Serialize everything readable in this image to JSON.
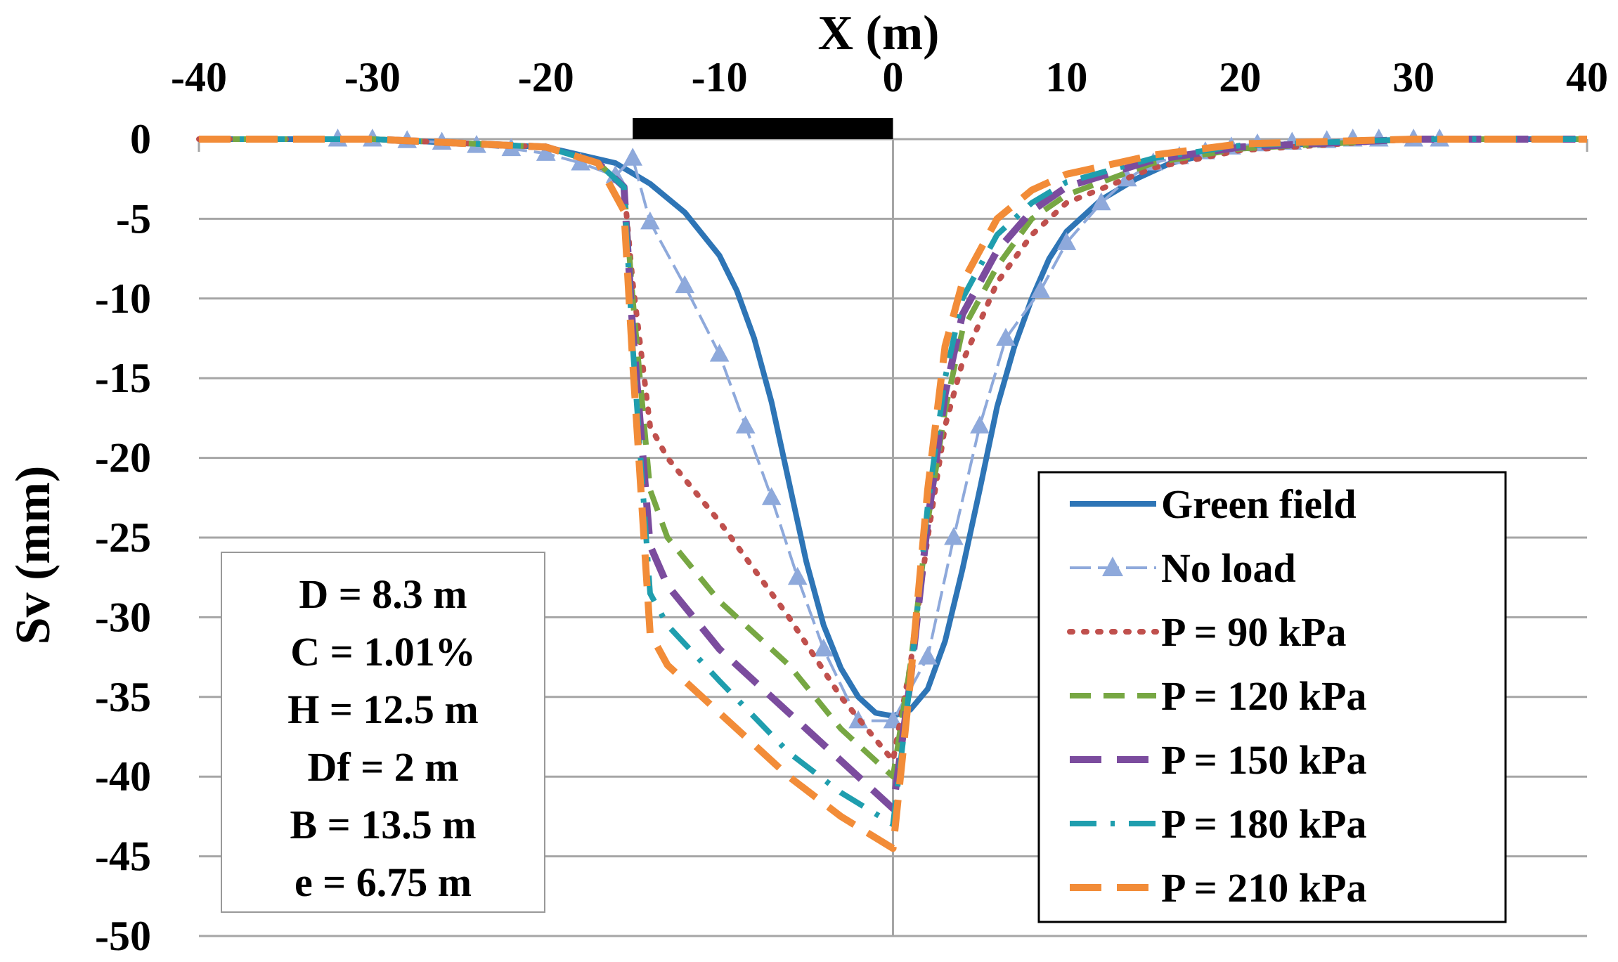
{
  "chart_data": {
    "type": "line",
    "title": "",
    "xlabel": "X (m)",
    "ylabel": "Sv (mm)",
    "xlim": [
      -40,
      40
    ],
    "ylim": [
      -50,
      0
    ],
    "x_ticks": [
      -40,
      -30,
      -20,
      -10,
      0,
      10,
      20,
      30,
      40
    ],
    "y_ticks": [
      0,
      -5,
      -10,
      -15,
      -20,
      -25,
      -30,
      -35,
      -40,
      -45,
      -50
    ],
    "x_axis_position": "top",
    "grid": "horizontal",
    "footing": {
      "x_start": -15,
      "x_end": 0,
      "label": ""
    },
    "series": [
      {
        "name": "Green field",
        "color": "#2E75B6",
        "style": "solid",
        "x": [
          -40,
          -30,
          -20,
          -16,
          -14,
          -12,
          -10,
          -9,
          -8,
          -7,
          -6,
          -5,
          -4,
          -3,
          -2,
          -1,
          0,
          1,
          2,
          3,
          4,
          5,
          6,
          7,
          8,
          9,
          10,
          12,
          14,
          16,
          20,
          30,
          40
        ],
        "y": [
          0,
          0,
          -0.5,
          -1.5,
          -2.8,
          -4.6,
          -7.3,
          -9.5,
          -12.5,
          -16.5,
          -21.5,
          -26.5,
          -30.5,
          -33.2,
          -35,
          -36,
          -36.2,
          -35.8,
          -34.5,
          -31.5,
          -27,
          -22,
          -16.8,
          -13,
          -10,
          -7.5,
          -5.8,
          -3.8,
          -2.5,
          -1.5,
          -0.5,
          0,
          0
        ]
      },
      {
        "name": "No load",
        "color": "#8EA9DB",
        "style": "dashed-triangle",
        "x": [
          -32,
          -30,
          -28,
          -26,
          -24,
          -22,
          -20,
          -18,
          -16,
          -15,
          -14,
          -12,
          -10,
          -8.5,
          -7,
          -5.5,
          -4,
          -2,
          0,
          2,
          3.5,
          5,
          6.5,
          8.5,
          10,
          12,
          13.5,
          15,
          16.5,
          18,
          19.5,
          21,
          23,
          25,
          26.5,
          28,
          30,
          31.5
        ],
        "y": [
          0,
          0,
          -0.1,
          -0.2,
          -0.4,
          -0.6,
          -0.9,
          -1.5,
          -2.3,
          -1.2,
          -5.2,
          -9.2,
          -13.5,
          -18,
          -22.5,
          -27.5,
          -32,
          -36.5,
          -36.5,
          -32.5,
          -25,
          -18,
          -12.5,
          -9.5,
          -6.5,
          -4,
          -2.5,
          -1.5,
          -1.1,
          -0.8,
          -0.5,
          -0.3,
          -0.2,
          -0.1,
          0,
          0,
          0,
          0
        ]
      },
      {
        "name": "P = 90 kPa",
        "color": "#C0504D",
        "style": "dotted",
        "x": [
          -40,
          -30,
          -20,
          -17,
          -15.5,
          -15,
          -14,
          -13,
          -10,
          -6,
          -3,
          0,
          1,
          2,
          3,
          4,
          6,
          8,
          10,
          15,
          20,
          30,
          40
        ],
        "y": [
          0,
          0,
          -0.5,
          -1.5,
          -3,
          -9,
          -18,
          -20,
          -24,
          -30,
          -35,
          -39,
          -33,
          -25,
          -18,
          -14,
          -9,
          -6,
          -4,
          -1.8,
          -0.7,
          0,
          0
        ]
      },
      {
        "name": "P = 120 kPa",
        "color": "#77A743",
        "style": "dashed",
        "x": [
          -40,
          -30,
          -20,
          -17,
          -15.5,
          -15,
          -14,
          -13,
          -10,
          -6,
          -3,
          0,
          1,
          2,
          3,
          4,
          6,
          8,
          10,
          15,
          20,
          30,
          40
        ],
        "y": [
          0,
          0,
          -0.5,
          -1.5,
          -3,
          -10,
          -22,
          -25,
          -29,
          -33,
          -37,
          -40,
          -33,
          -24,
          -17,
          -12,
          -8,
          -5,
          -3.5,
          -1.5,
          -0.6,
          0,
          0
        ]
      },
      {
        "name": "P = 150 kPa",
        "color": "#7B4C9E",
        "style": "long-dashed",
        "x": [
          -40,
          -30,
          -20,
          -17,
          -15.5,
          -15,
          -14,
          -13,
          -10,
          -6,
          -3,
          0,
          1,
          2,
          3,
          4,
          6,
          8,
          10,
          15,
          20,
          30,
          40
        ],
        "y": [
          0,
          0,
          -0.5,
          -1.5,
          -3,
          -12,
          -25.5,
          -28,
          -32,
          -36,
          -39,
          -42,
          -34,
          -24,
          -16,
          -11,
          -7,
          -4.5,
          -3,
          -1.3,
          -0.5,
          0,
          0
        ]
      },
      {
        "name": "P = 180 kPa",
        "color": "#1F9EAE",
        "style": "dash-dot",
        "x": [
          -40,
          -30,
          -20,
          -17,
          -15.5,
          -15,
          -14,
          -13,
          -10,
          -6,
          -3,
          0,
          1,
          2,
          3,
          4,
          6,
          8,
          10,
          15,
          20,
          30,
          40
        ],
        "y": [
          0,
          0,
          -0.5,
          -1.5,
          -3,
          -13,
          -28.5,
          -30.5,
          -34,
          -38.5,
          -41,
          -43,
          -34,
          -23,
          -15,
          -10,
          -6,
          -4,
          -2.7,
          -1.2,
          -0.4,
          0,
          0
        ]
      },
      {
        "name": "P = 210 kPa",
        "color": "#F28C38",
        "style": "long-dashed",
        "x": [
          -40,
          -30,
          -20,
          -17,
          -15.5,
          -15,
          -14,
          -13,
          -10,
          -6,
          -3,
          0,
          1,
          2,
          3,
          4,
          6,
          8,
          10,
          15,
          20,
          30,
          40
        ],
        "y": [
          0,
          0,
          -0.5,
          -1.5,
          -4.5,
          -14,
          -31,
          -33,
          -36,
          -40,
          -42.5,
          -44.5,
          -34,
          -22,
          -13,
          -9,
          -5,
          -3.2,
          -2.2,
          -1,
          -0.3,
          0,
          0
        ]
      }
    ],
    "annotations": {
      "parameters": [
        "D = 8.3 m",
        "C = 1.01%",
        "H = 12.5 m",
        "Df = 2 m",
        "B = 13.5 m",
        "e = 6.75 m"
      ]
    },
    "legend_position": "bottom-right"
  }
}
